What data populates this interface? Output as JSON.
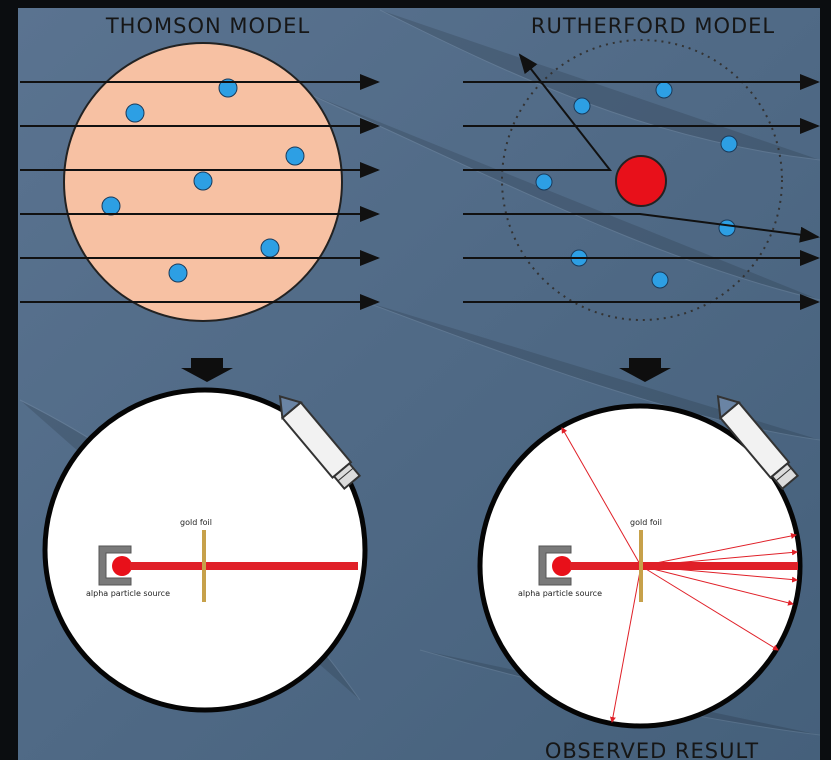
{
  "thomson": {
    "title": "THOMSON MODEL",
    "gold_foil_label": "gold foil",
    "source_label": "alpha particle source"
  },
  "rutherford": {
    "title": "RUTHERFORD MODEL",
    "gold_foil_label": "gold foil",
    "source_label": "alpha particle source",
    "caption": "OBSERVED RESULT"
  },
  "colors": {
    "panel": "#4c6480",
    "atom_fill": "#f7c1a3",
    "electron": "#2d9fe4",
    "nucleus": "#e8101a",
    "beam": "#e02028",
    "foil": "#c7a14a"
  }
}
